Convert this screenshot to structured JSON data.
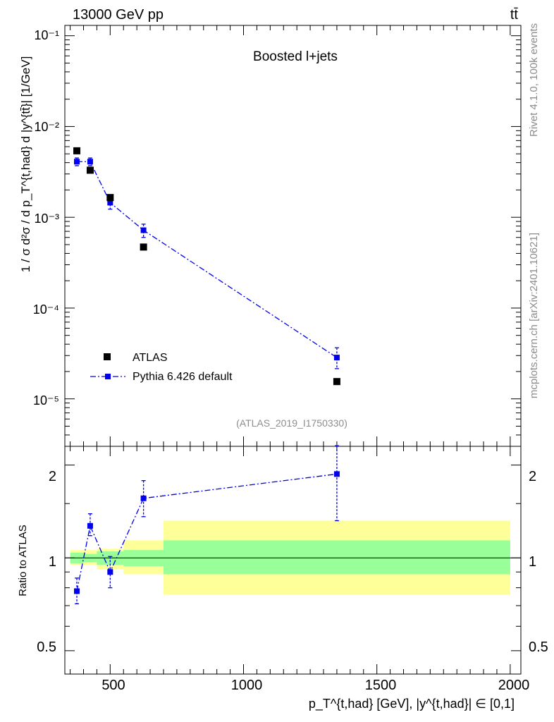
{
  "header": {
    "energy_label": "13000 GeV pp",
    "process_label": "tt̄",
    "analysis_title": "Boosted l+jets",
    "analysis_id": "(ATLAS_2019_I1750330)",
    "side_rivet": "Rivet 4.1.0,  100k events",
    "side_source": "mcplots.cern.ch [arXiv:2401.10621]"
  },
  "legend": {
    "data_label": "ATLAS",
    "mc_label": "Pythia 6.426 default"
  },
  "axes": {
    "y_main_label": "1 / σ d²σ / d p_T^{t,had} d |y^{tt̄}| [1/GeV]",
    "y_ratio_label": "Ratio to ATLAS",
    "x_label": "p_T^{t,had} [GeV], |y^{t,had}| ∈ [0,1]",
    "main_ticks": [
      "10⁻¹",
      "10⁻²",
      "10⁻³",
      "10⁻⁴",
      "10⁻⁵"
    ],
    "ratio_ticks": [
      "2",
      "1",
      "0.5"
    ],
    "x_ticks": [
      "500",
      "1000",
      "1500",
      "2000"
    ]
  },
  "chart_data": [
    {
      "type": "scatter",
      "panel": "main",
      "yscale": "log",
      "xlim": [
        330,
        2040
      ],
      "ylim": [
        3e-06,
        0.13
      ],
      "series": [
        {
          "name": "ATLAS",
          "color": "#000000",
          "x": [
            375,
            425,
            500,
            625,
            1350
          ],
          "y": [
            0.0054,
            0.0033,
            0.00165,
            0.00047,
            1.55e-05
          ]
        },
        {
          "name": "Pythia 6.426 default",
          "color": "#0000ee",
          "x": [
            375,
            425,
            500,
            625,
            1350
          ],
          "y": [
            0.0041,
            0.0041,
            0.00145,
            0.00072,
            2.85e-05
          ],
          "yerr_low": [
            0.0004,
            0.0004,
            0.00022,
            0.00012,
            7e-06
          ],
          "yerr_high": [
            0.0004,
            0.0004,
            0.00022,
            0.00012,
            8e-06
          ]
        }
      ]
    },
    {
      "type": "line",
      "panel": "ratio",
      "yscale": "log",
      "xlim": [
        330,
        2040
      ],
      "ylim": [
        0.42,
        2.3
      ],
      "bands": {
        "edges": [
          350,
          400,
          450,
          550,
          700,
          2000
        ],
        "inner_low": [
          0.96,
          0.97,
          0.95,
          0.94,
          0.885,
          0.885
        ],
        "inner_high": [
          1.04,
          1.03,
          1.05,
          1.06,
          1.14,
          1.14
        ],
        "outer_low": [
          0.95,
          0.95,
          0.92,
          0.885,
          0.76,
          0.76
        ],
        "outer_high": [
          1.06,
          1.06,
          1.07,
          1.14,
          1.32,
          1.32
        ],
        "inner_color": "#99ff99",
        "outer_color": "#ffff99"
      },
      "series": [
        {
          "name": "Pythia 6.426 default",
          "x": [
            375,
            425,
            500,
            625,
            1350
          ],
          "y": [
            0.78,
            1.27,
            0.9,
            1.56,
            1.87
          ],
          "yerr_low": [
            0.07,
            0.09,
            0.1,
            0.2,
            0.55
          ],
          "yerr_high": [
            0.08,
            0.12,
            0.11,
            0.22,
            0.44
          ]
        }
      ]
    }
  ]
}
